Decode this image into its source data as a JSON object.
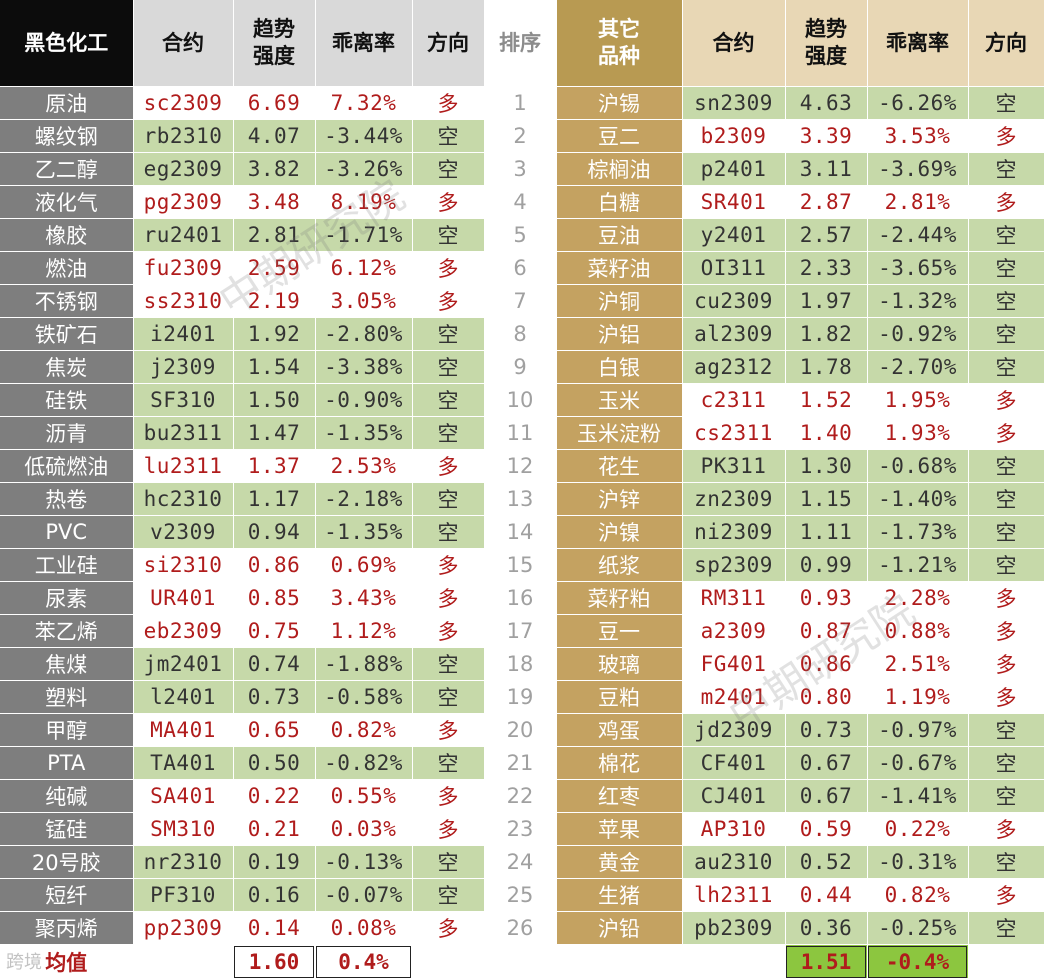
{
  "headers": {
    "left_group": "黑色化工",
    "left_contract": "合约",
    "left_strength": "趋势\n强度",
    "left_deviation": "乖离率",
    "left_direction": "方向",
    "rank": "排序",
    "right_group": "其它\n品种",
    "right_contract": "合约",
    "right_strength": "趋势\n强度",
    "right_deviation": "乖离率",
    "right_direction": "方向"
  },
  "rows": [
    {
      "rank": "1",
      "left": {
        "name": "原油",
        "contract": "sc2309",
        "strength": "6.69",
        "deviation": "7.32%",
        "direction": "多"
      },
      "right": {
        "name": "沪锡",
        "contract": "sn2309",
        "strength": "4.63",
        "deviation": "-6.26%",
        "direction": "空"
      }
    },
    {
      "rank": "2",
      "left": {
        "name": "螺纹钢",
        "contract": "rb2310",
        "strength": "4.07",
        "deviation": "-3.44%",
        "direction": "空"
      },
      "right": {
        "name": "豆二",
        "contract": "b2309",
        "strength": "3.39",
        "deviation": "3.53%",
        "direction": "多"
      }
    },
    {
      "rank": "3",
      "left": {
        "name": "乙二醇",
        "contract": "eg2309",
        "strength": "3.82",
        "deviation": "-3.26%",
        "direction": "空"
      },
      "right": {
        "name": "棕榈油",
        "contract": "p2401",
        "strength": "3.11",
        "deviation": "-3.69%",
        "direction": "空"
      }
    },
    {
      "rank": "4",
      "left": {
        "name": "液化气",
        "contract": "pg2309",
        "strength": "3.48",
        "deviation": "8.19%",
        "direction": "多"
      },
      "right": {
        "name": "白糖",
        "contract": "SR401",
        "strength": "2.87",
        "deviation": "2.81%",
        "direction": "多"
      }
    },
    {
      "rank": "5",
      "left": {
        "name": "橡胶",
        "contract": "ru2401",
        "strength": "2.81",
        "deviation": "-1.71%",
        "direction": "空"
      },
      "right": {
        "name": "豆油",
        "contract": "y2401",
        "strength": "2.57",
        "deviation": "-2.44%",
        "direction": "空"
      }
    },
    {
      "rank": "6",
      "left": {
        "name": "燃油",
        "contract": "fu2309",
        "strength": "2.59",
        "deviation": "6.12%",
        "direction": "多"
      },
      "right": {
        "name": "菜籽油",
        "contract": "OI311",
        "strength": "2.33",
        "deviation": "-3.65%",
        "direction": "空"
      }
    },
    {
      "rank": "7",
      "left": {
        "name": "不锈钢",
        "contract": "ss2310",
        "strength": "2.19",
        "deviation": "3.05%",
        "direction": "多"
      },
      "right": {
        "name": "沪铜",
        "contract": "cu2309",
        "strength": "1.97",
        "deviation": "-1.32%",
        "direction": "空"
      }
    },
    {
      "rank": "8",
      "left": {
        "name": "铁矿石",
        "contract": "i2401",
        "strength": "1.92",
        "deviation": "-2.80%",
        "direction": "空"
      },
      "right": {
        "name": "沪铝",
        "contract": "al2309",
        "strength": "1.82",
        "deviation": "-0.92%",
        "direction": "空"
      }
    },
    {
      "rank": "9",
      "left": {
        "name": "焦炭",
        "contract": "j2309",
        "strength": "1.54",
        "deviation": "-3.38%",
        "direction": "空"
      },
      "right": {
        "name": "白银",
        "contract": "ag2312",
        "strength": "1.78",
        "deviation": "-2.70%",
        "direction": "空"
      }
    },
    {
      "rank": "10",
      "left": {
        "name": "硅铁",
        "contract": "SF310",
        "strength": "1.50",
        "deviation": "-0.90%",
        "direction": "空"
      },
      "right": {
        "name": "玉米",
        "contract": "c2311",
        "strength": "1.52",
        "deviation": "1.95%",
        "direction": "多"
      }
    },
    {
      "rank": "11",
      "left": {
        "name": "沥青",
        "contract": "bu2311",
        "strength": "1.47",
        "deviation": "-1.35%",
        "direction": "空"
      },
      "right": {
        "name": "玉米淀粉",
        "contract": "cs2311",
        "strength": "1.40",
        "deviation": "1.93%",
        "direction": "多"
      }
    },
    {
      "rank": "12",
      "left": {
        "name": "低硫燃油",
        "contract": "lu2311",
        "strength": "1.37",
        "deviation": "2.53%",
        "direction": "多"
      },
      "right": {
        "name": "花生",
        "contract": "PK311",
        "strength": "1.30",
        "deviation": "-0.68%",
        "direction": "空"
      }
    },
    {
      "rank": "13",
      "left": {
        "name": "热卷",
        "contract": "hc2310",
        "strength": "1.17",
        "deviation": "-2.18%",
        "direction": "空"
      },
      "right": {
        "name": "沪锌",
        "contract": "zn2309",
        "strength": "1.15",
        "deviation": "-1.40%",
        "direction": "空"
      }
    },
    {
      "rank": "14",
      "left": {
        "name": "PVC",
        "contract": "v2309",
        "strength": "0.94",
        "deviation": "-1.35%",
        "direction": "空"
      },
      "right": {
        "name": "沪镍",
        "contract": "ni2309",
        "strength": "1.11",
        "deviation": "-1.73%",
        "direction": "空"
      }
    },
    {
      "rank": "15",
      "left": {
        "name": "工业硅",
        "contract": "si2310",
        "strength": "0.86",
        "deviation": "0.69%",
        "direction": "多"
      },
      "right": {
        "name": "纸浆",
        "contract": "sp2309",
        "strength": "0.99",
        "deviation": "-1.21%",
        "direction": "空"
      }
    },
    {
      "rank": "16",
      "left": {
        "name": "尿素",
        "contract": "UR401",
        "strength": "0.85",
        "deviation": "3.43%",
        "direction": "多"
      },
      "right": {
        "name": "菜籽粕",
        "contract": "RM311",
        "strength": "0.93",
        "deviation": "2.28%",
        "direction": "多"
      }
    },
    {
      "rank": "17",
      "left": {
        "name": "苯乙烯",
        "contract": "eb2309",
        "strength": "0.75",
        "deviation": "1.12%",
        "direction": "多"
      },
      "right": {
        "name": "豆一",
        "contract": "a2309",
        "strength": "0.87",
        "deviation": "0.88%",
        "direction": "多"
      }
    },
    {
      "rank": "18",
      "left": {
        "name": "焦煤",
        "contract": "jm2401",
        "strength": "0.74",
        "deviation": "-1.88%",
        "direction": "空"
      },
      "right": {
        "name": "玻璃",
        "contract": "FG401",
        "strength": "0.86",
        "deviation": "2.51%",
        "direction": "多"
      }
    },
    {
      "rank": "19",
      "left": {
        "name": "塑料",
        "contract": "l2401",
        "strength": "0.73",
        "deviation": "-0.58%",
        "direction": "空"
      },
      "right": {
        "name": "豆粕",
        "contract": "m2401",
        "strength": "0.80",
        "deviation": "1.19%",
        "direction": "多"
      }
    },
    {
      "rank": "20",
      "left": {
        "name": "甲醇",
        "contract": "MA401",
        "strength": "0.65",
        "deviation": "0.82%",
        "direction": "多"
      },
      "right": {
        "name": "鸡蛋",
        "contract": "jd2309",
        "strength": "0.73",
        "deviation": "-0.97%",
        "direction": "空"
      }
    },
    {
      "rank": "21",
      "left": {
        "name": "PTA",
        "contract": "TA401",
        "strength": "0.50",
        "deviation": "-0.82%",
        "direction": "空"
      },
      "right": {
        "name": "棉花",
        "contract": "CF401",
        "strength": "0.67",
        "deviation": "-0.67%",
        "direction": "空"
      }
    },
    {
      "rank": "22",
      "left": {
        "name": "纯碱",
        "contract": "SA401",
        "strength": "0.22",
        "deviation": "0.55%",
        "direction": "多"
      },
      "right": {
        "name": "红枣",
        "contract": "CJ401",
        "strength": "0.67",
        "deviation": "-1.41%",
        "direction": "空"
      }
    },
    {
      "rank": "23",
      "left": {
        "name": "锰硅",
        "contract": "SM310",
        "strength": "0.21",
        "deviation": "0.03%",
        "direction": "多"
      },
      "right": {
        "name": "苹果",
        "contract": "AP310",
        "strength": "0.59",
        "deviation": "0.22%",
        "direction": "多"
      }
    },
    {
      "rank": "24",
      "left": {
        "name": "20号胶",
        "contract": "nr2310",
        "strength": "0.19",
        "deviation": "-0.13%",
        "direction": "空"
      },
      "right": {
        "name": "黄金",
        "contract": "au2310",
        "strength": "0.52",
        "deviation": "-0.31%",
        "direction": "空"
      }
    },
    {
      "rank": "25",
      "left": {
        "name": "短纤",
        "contract": "PF310",
        "strength": "0.16",
        "deviation": "-0.07%",
        "direction": "空"
      },
      "right": {
        "name": "生猪",
        "contract": "lh2311",
        "strength": "0.44",
        "deviation": "0.82%",
        "direction": "多"
      }
    },
    {
      "rank": "26",
      "left": {
        "name": "聚丙烯",
        "contract": "pp2309",
        "strength": "0.14",
        "deviation": "0.08%",
        "direction": "多"
      },
      "right": {
        "name": "沪铅",
        "contract": "pb2309",
        "strength": "0.36",
        "deviation": "-0.25%",
        "direction": "空"
      }
    }
  ],
  "footer": {
    "label": "均值",
    "left_strength": "1.60",
    "left_deviation": "0.4%",
    "right_strength": "1.51",
    "right_deviation": "-0.4%"
  },
  "watermarks": [
    "中期研究院",
    "中期研究院"
  ],
  "corner_mark": "跨境",
  "colors": {
    "long_text": "#b01c1c",
    "short_fill": "#c6d9a9",
    "left_name_fill": "#7e7e7e",
    "right_name_fill": "#c4a261"
  }
}
